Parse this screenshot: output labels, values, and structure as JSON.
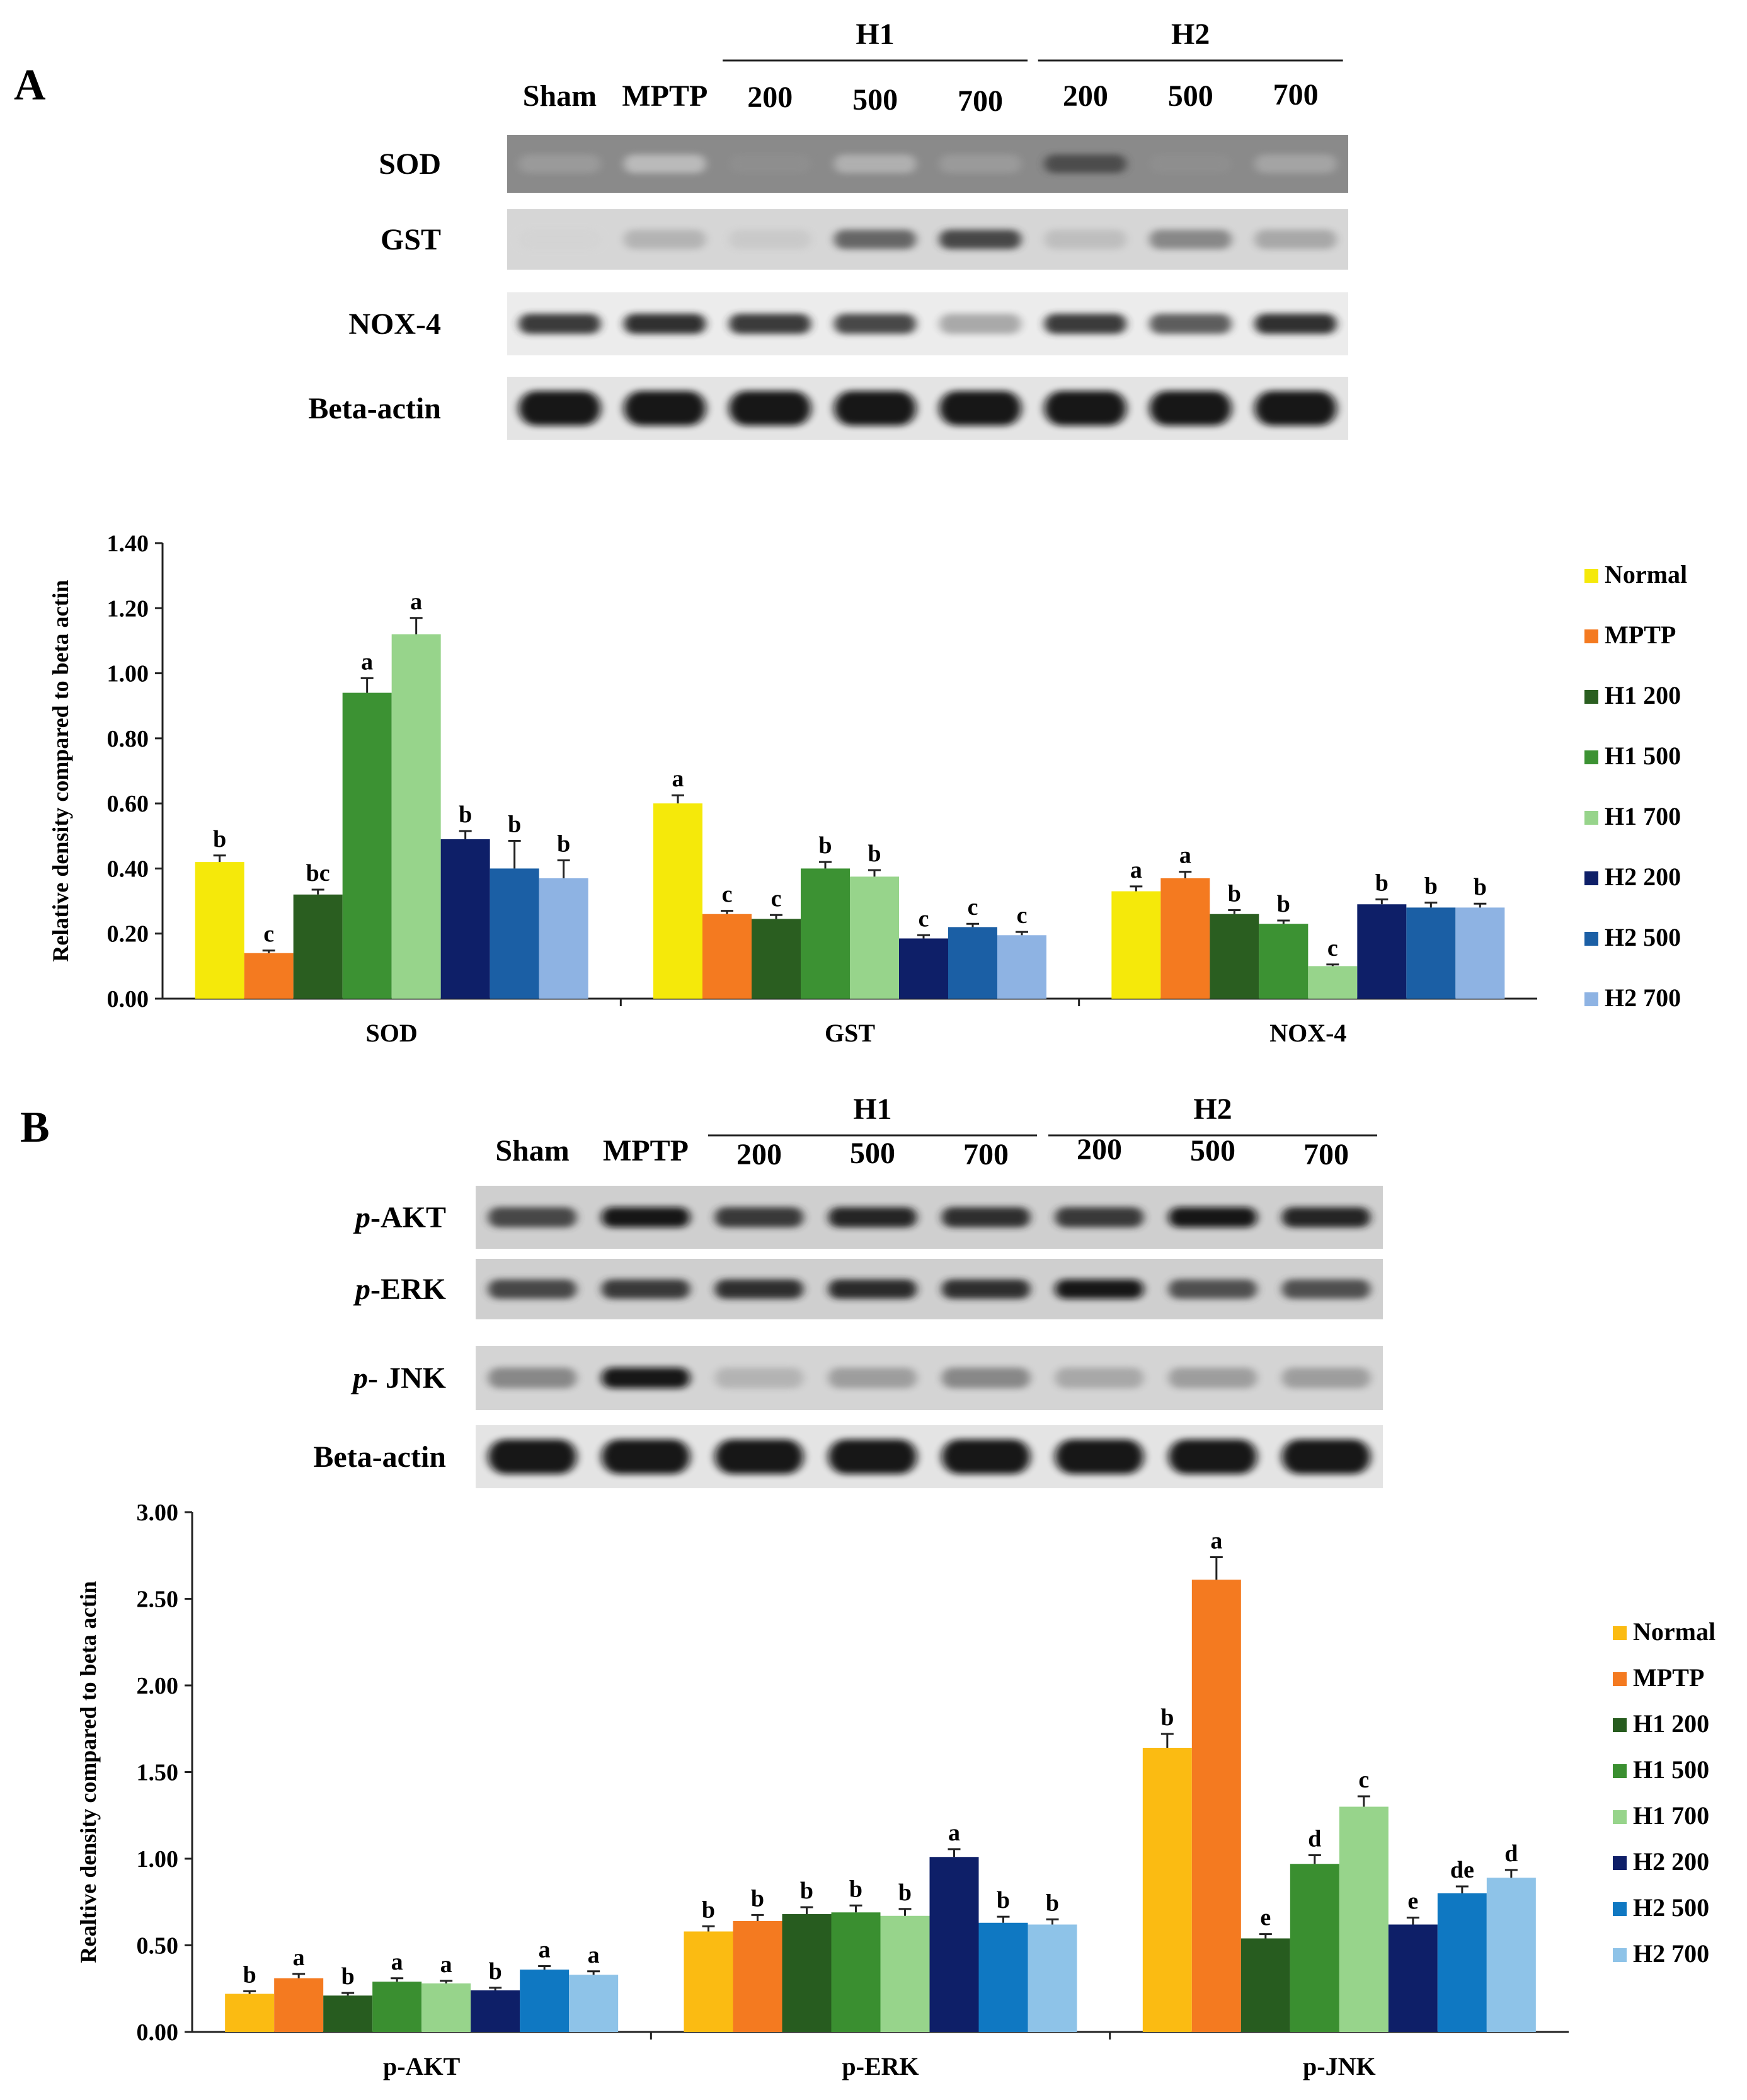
{
  "panels": [
    {
      "panel_label": "A",
      "blot": {
        "lane_labels": [
          "Sham",
          "MPTP",
          "200",
          "500",
          "700",
          "200",
          "500",
          "700"
        ],
        "groups": [
          {
            "label": "H1",
            "lanes": [
              2,
              4
            ]
          },
          {
            "label": "H2",
            "lanes": [
              5,
              7
            ]
          }
        ],
        "rows": [
          {
            "label": "SOD",
            "italic_prefix": "",
            "name": "SOD",
            "bg": "#8a8a8a",
            "band": [
              0.35,
              0.2,
              0.4,
              0.25,
              0.35,
              0.7,
              0.4,
              0.3
            ]
          },
          {
            "label": "GST",
            "italic_prefix": "",
            "name": "GST",
            "bg": "#d6d6d6",
            "band": [
              0.1,
              0.25,
              0.15,
              0.6,
              0.75,
              0.2,
              0.45,
              0.3
            ]
          },
          {
            "label": "NOX-4",
            "italic_prefix": "",
            "name": "NOX-4",
            "bg": "#ececec",
            "band": [
              0.8,
              0.85,
              0.8,
              0.75,
              0.3,
              0.8,
              0.65,
              0.85
            ]
          },
          {
            "label": "Beta-actin",
            "italic_prefix": "",
            "name": "Beta-actin",
            "bg": "#e4e4e4",
            "band": [
              0.95,
              0.95,
              0.95,
              0.95,
              0.95,
              0.95,
              0.95,
              0.95
            ]
          }
        ]
      }
    },
    {
      "panel_label": "B",
      "blot": {
        "lane_labels": [
          "Sham",
          "MPTP",
          "200",
          "500",
          "700",
          "200",
          "500",
          "700"
        ],
        "groups": [
          {
            "label": "H1",
            "lanes": [
              2,
              4
            ]
          },
          {
            "label": "H2",
            "lanes": [
              5,
              7
            ]
          }
        ],
        "rows": [
          {
            "label": "p-AKT",
            "italic_prefix": "p",
            "name": "-AKT",
            "bg": "#cfcfcf",
            "band": [
              0.75,
              0.95,
              0.8,
              0.9,
              0.85,
              0.8,
              0.95,
              0.9
            ]
          },
          {
            "label": "p-ERK",
            "italic_prefix": "p",
            "name": "-ERK",
            "bg": "#cfcfcf",
            "band": [
              0.75,
              0.8,
              0.85,
              0.88,
              0.85,
              0.95,
              0.7,
              0.7
            ]
          },
          {
            "label": "p- JNK",
            "italic_prefix": "p",
            "name": "- JNK",
            "bg": "#d4d4d4",
            "band": [
              0.45,
              0.95,
              0.25,
              0.35,
              0.45,
              0.3,
              0.35,
              0.35
            ]
          },
          {
            "label": "Beta-actin",
            "italic_prefix": "",
            "name": "Beta-actin",
            "bg": "#e4e4e4",
            "band": [
              0.95,
              0.95,
              0.95,
              0.95,
              0.95,
              0.95,
              0.95,
              0.95
            ]
          }
        ]
      }
    }
  ],
  "chart_data": [
    {
      "type": "bar",
      "panel": "A",
      "ylabel": "Relative density compared to beta actin",
      "ylim": [
        0,
        1.4
      ],
      "yticks": [
        "0.00",
        "0.20",
        "0.40",
        "0.60",
        "0.80",
        "1.00",
        "1.20",
        "1.40"
      ],
      "categories": [
        "SOD",
        "GST",
        "NOX-4"
      ],
      "legend_position": "right",
      "series": [
        {
          "name": "Normal",
          "color": "#f5e90a",
          "values": [
            0.42,
            0.6,
            0.33
          ],
          "errors": [
            0.02,
            0.025,
            0.015
          ],
          "letters": [
            "b",
            "a",
            "a"
          ]
        },
        {
          "name": "MPTP",
          "color": "#f47a20",
          "values": [
            0.14,
            0.26,
            0.37
          ],
          "errors": [
            0.008,
            0.01,
            0.02
          ],
          "letters": [
            "c",
            "c",
            "a"
          ]
        },
        {
          "name": "H1 200",
          "color": "#2a5e20",
          "values": [
            0.32,
            0.245,
            0.26
          ],
          "errors": [
            0.015,
            0.012,
            0.012
          ],
          "letters": [
            "bc",
            "c",
            "b"
          ]
        },
        {
          "name": "H1 500",
          "color": "#3c9233",
          "values": [
            0.94,
            0.4,
            0.23
          ],
          "errors": [
            0.045,
            0.02,
            0.01
          ],
          "letters": [
            "a",
            "b",
            "b"
          ]
        },
        {
          "name": "H1 700",
          "color": "#97d48b",
          "values": [
            1.12,
            0.375,
            0.1
          ],
          "errors": [
            0.05,
            0.02,
            0.005
          ],
          "letters": [
            "a",
            "b",
            "c"
          ]
        },
        {
          "name": "H2 200",
          "color": "#0e1f68",
          "values": [
            0.49,
            0.185,
            0.29
          ],
          "errors": [
            0.025,
            0.01,
            0.015
          ],
          "letters": [
            "b",
            "c",
            "b"
          ]
        },
        {
          "name": "H2 500",
          "color": "#1b5fa5",
          "values": [
            0.4,
            0.22,
            0.28
          ],
          "errors": [
            0.085,
            0.01,
            0.015
          ],
          "letters": [
            "b",
            "c",
            "b"
          ]
        },
        {
          "name": "H2 700",
          "color": "#8eb3e3",
          "values": [
            0.37,
            0.195,
            0.28
          ],
          "errors": [
            0.055,
            0.01,
            0.012
          ],
          "letters": [
            "b",
            "c",
            "b"
          ]
        }
      ]
    },
    {
      "type": "bar",
      "panel": "B",
      "ylabel": "Realtive density compared to beta actin",
      "ylim": [
        0,
        3.0
      ],
      "yticks": [
        "0.00",
        "0.50",
        "1.00",
        "1.50",
        "2.00",
        "2.50",
        "3.00"
      ],
      "categories": [
        "p-AKT",
        "p-ERK",
        "p-JNK"
      ],
      "legend_position": "right",
      "series": [
        {
          "name": "Normal",
          "color": "#fbbb12",
          "values": [
            0.22,
            0.58,
            1.64
          ],
          "errors": [
            0.015,
            0.03,
            0.08
          ],
          "letters": [
            "b",
            "b",
            "b"
          ]
        },
        {
          "name": "MPTP",
          "color": "#f47a20",
          "values": [
            0.31,
            0.64,
            2.61
          ],
          "errors": [
            0.025,
            0.035,
            0.13
          ],
          "letters": [
            "a",
            "b",
            "a"
          ]
        },
        {
          "name": "H1 200",
          "color": "#275c1f",
          "values": [
            0.21,
            0.68,
            0.54
          ],
          "errors": [
            0.015,
            0.04,
            0.025
          ],
          "letters": [
            "b",
            "b",
            "e"
          ]
        },
        {
          "name": "H1 500",
          "color": "#3a8f30",
          "values": [
            0.29,
            0.69,
            0.97
          ],
          "errors": [
            0.02,
            0.04,
            0.05
          ],
          "letters": [
            "a",
            "b",
            "d"
          ]
        },
        {
          "name": "H1 700",
          "color": "#97d48b",
          "values": [
            0.28,
            0.67,
            1.3
          ],
          "errors": [
            0.015,
            0.04,
            0.06
          ],
          "letters": [
            "a",
            "b",
            "c"
          ]
        },
        {
          "name": "H2 200",
          "color": "#0e1f68",
          "values": [
            0.24,
            1.01,
            0.62
          ],
          "errors": [
            0.015,
            0.045,
            0.04
          ],
          "letters": [
            "b",
            "a",
            "e"
          ]
        },
        {
          "name": "H2 500",
          "color": "#0f78c2",
          "values": [
            0.36,
            0.63,
            0.8
          ],
          "errors": [
            0.02,
            0.035,
            0.04
          ],
          "letters": [
            "a",
            "b",
            "de"
          ]
        },
        {
          "name": "H2 700",
          "color": "#8ec3e8",
          "values": [
            0.33,
            0.62,
            0.89
          ],
          "errors": [
            0.02,
            0.03,
            0.045
          ],
          "letters": [
            "a",
            "b",
            "d"
          ]
        }
      ]
    }
  ]
}
